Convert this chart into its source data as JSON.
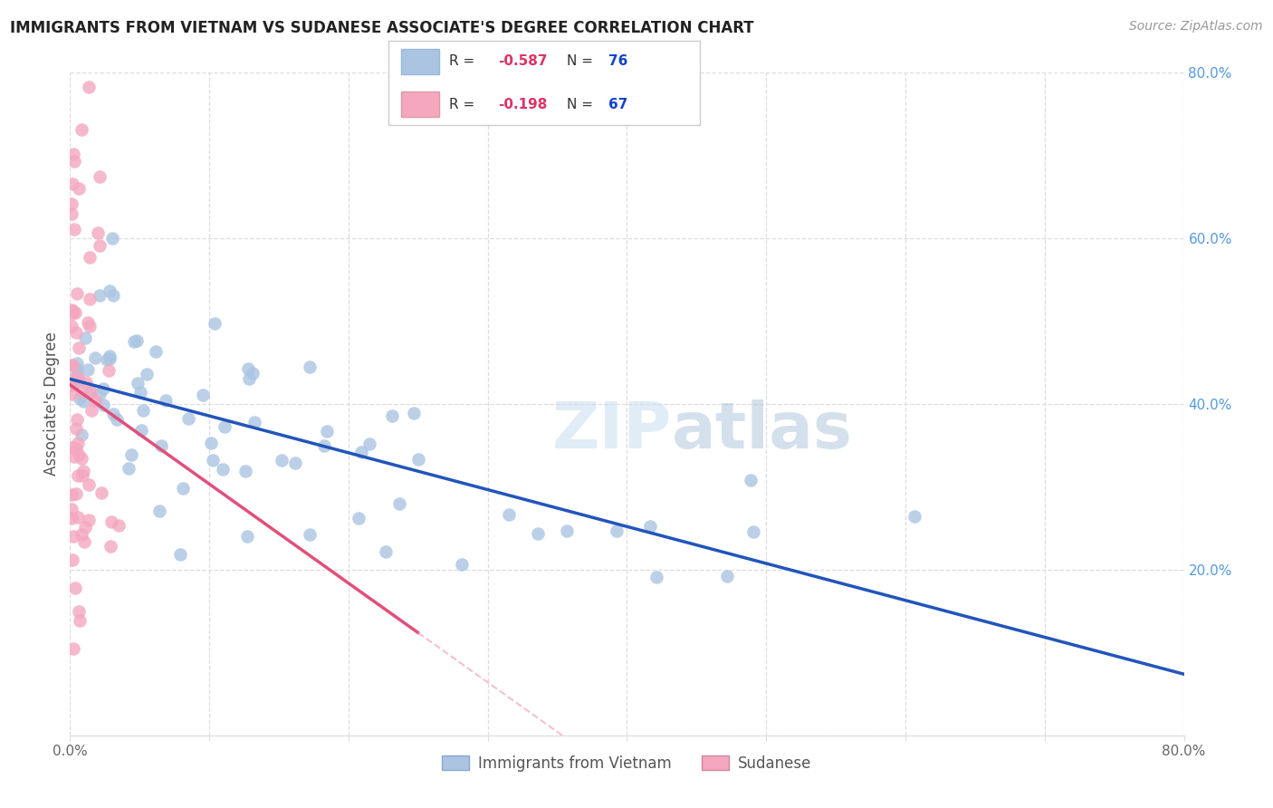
{
  "title": "IMMIGRANTS FROM VIETNAM VS SUDANESE ASSOCIATE'S DEGREE CORRELATION CHART",
  "source": "Source: ZipAtlas.com",
  "ylabel": "Associate's Degree",
  "xlim": [
    0.0,
    0.8
  ],
  "ylim": [
    0.0,
    0.8
  ],
  "legend_labels": [
    "Immigrants from Vietnam",
    "Sudanese"
  ],
  "R_vietnam": -0.587,
  "N_vietnam": 76,
  "R_sudanese": -0.198,
  "N_sudanese": 67,
  "color_vietnam": "#aac4e2",
  "color_sudanese": "#f4a7be",
  "trendline_vietnam": "#2255bb",
  "trendline_sudanese_solid": "#e0507a",
  "trendline_sudanese_dash": "#f0b0c8",
  "watermark_color": "#ddeeff",
  "grid_color": "#dddddd",
  "right_tick_color": "#5599dd",
  "title_color": "#222222",
  "source_color": "#999999",
  "ylabel_color": "#555555",
  "tick_color": "#666666"
}
